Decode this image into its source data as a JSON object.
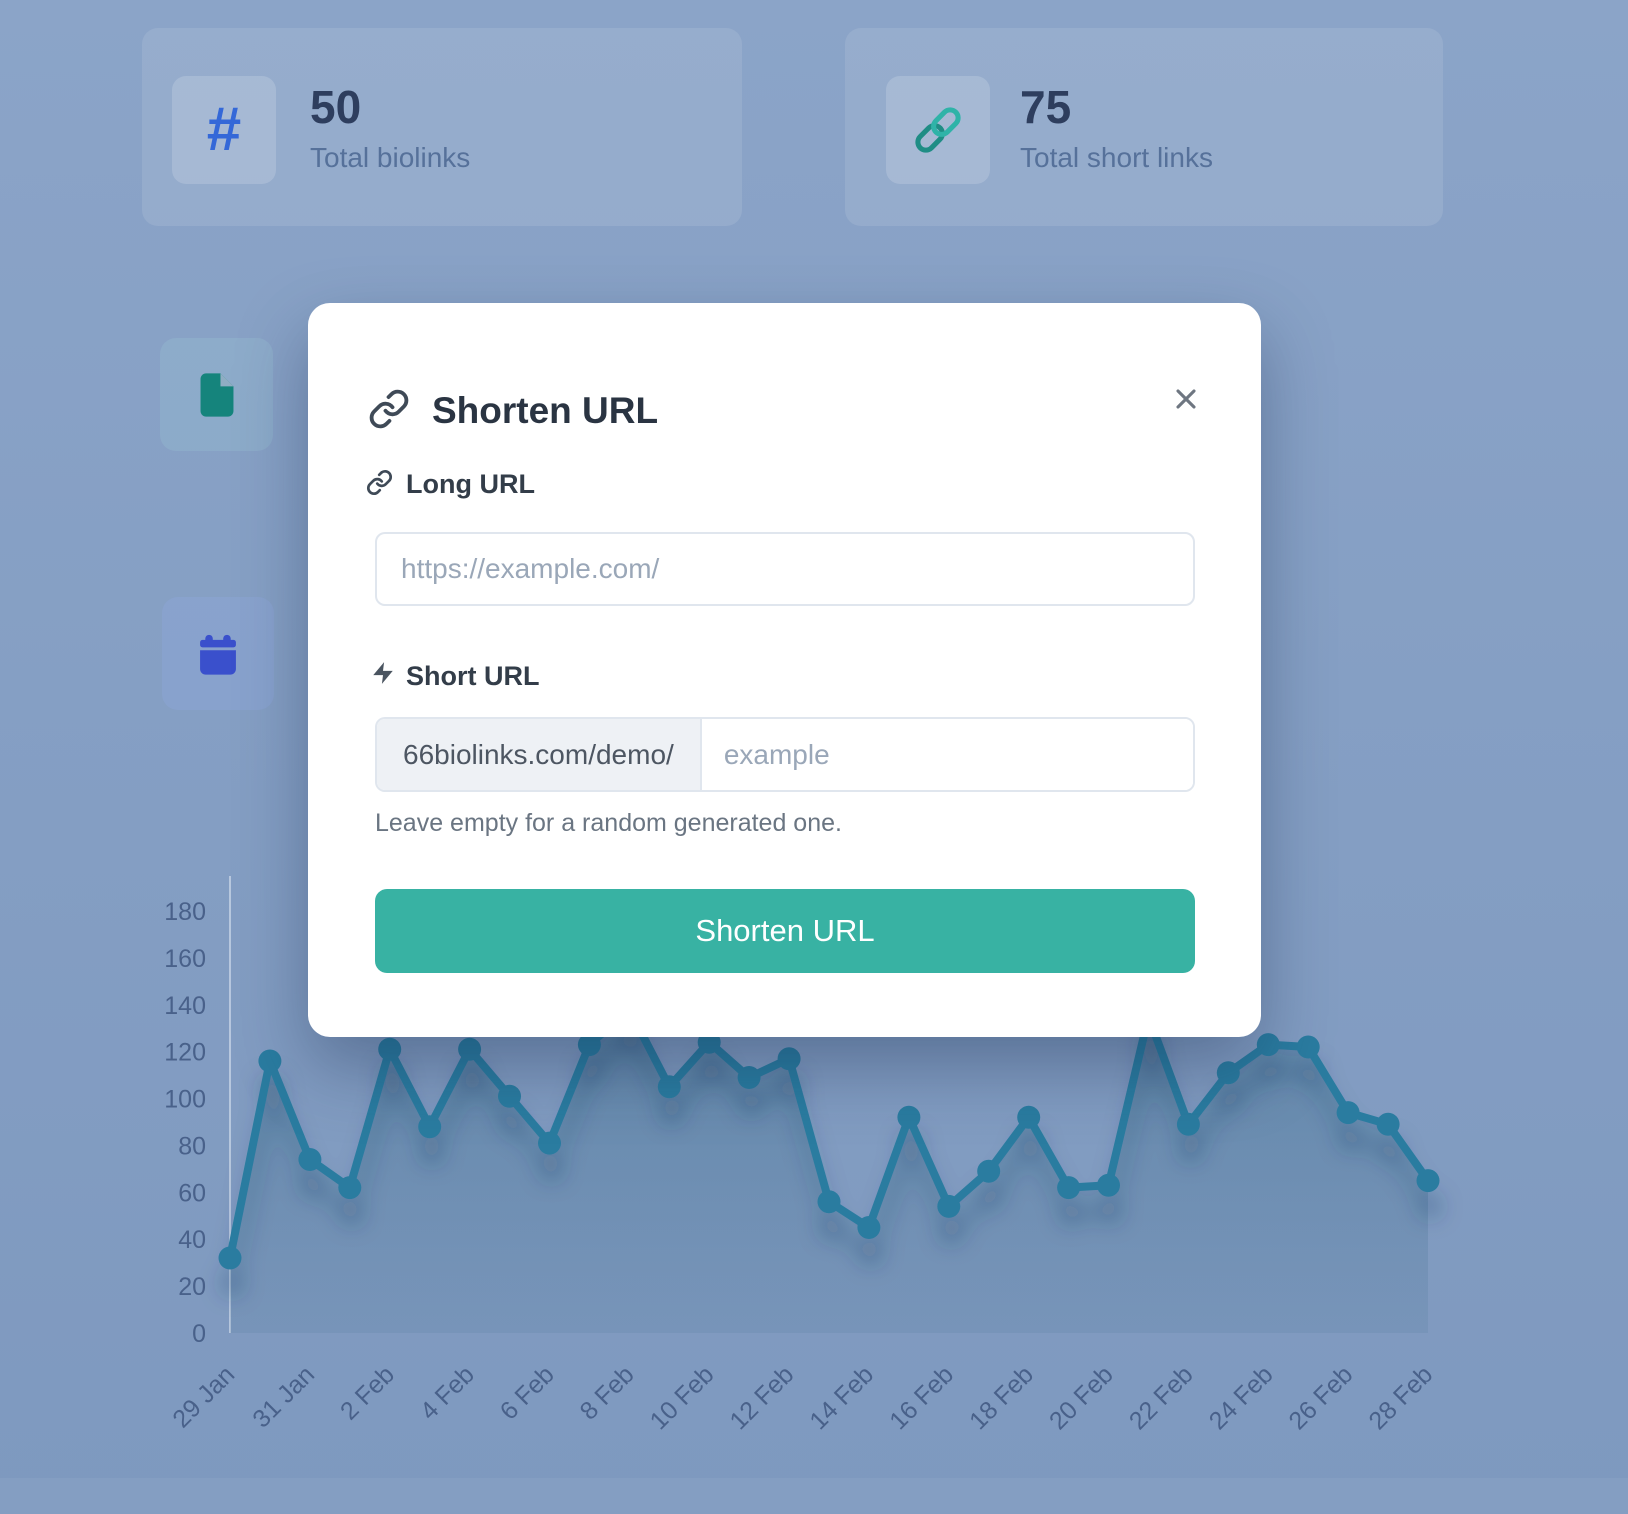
{
  "page": {
    "backdrop_color": "#85a0c4"
  },
  "stats": {
    "cards": [
      {
        "icon": "hash-icon",
        "icon_glyph": "#",
        "icon_color": "#3468d8",
        "value": "50",
        "label": "Total biolinks"
      },
      {
        "icon": "link-icon",
        "icon_color": "#2a9d95",
        "value": "75",
        "label": "Total short links"
      }
    ]
  },
  "side_tiles": [
    {
      "icon": "document-icon",
      "color": "#15847c"
    },
    {
      "icon": "calendar-icon",
      "color": "#3a50cc"
    }
  ],
  "modal": {
    "title": "Shorten URL",
    "accent_color": "#38b2a3",
    "long_url": {
      "label": "Long URL",
      "placeholder": "https://example.com/",
      "value": ""
    },
    "short_url": {
      "label": "Short URL",
      "prefix": "66biolinks.com/demo/",
      "placeholder": "example",
      "value": "",
      "helper": "Leave empty for a random generated one."
    },
    "submit_label": "Shorten URL"
  },
  "chart_data": {
    "type": "area",
    "x": [
      "29 Jan",
      "30 Jan",
      "31 Jan",
      "1 Feb",
      "2 Feb",
      "3 Feb",
      "4 Feb",
      "5 Feb",
      "6 Feb",
      "7 Feb",
      "8 Feb",
      "9 Feb",
      "10 Feb",
      "11 Feb",
      "12 Feb",
      "13 Feb",
      "14 Feb",
      "15 Feb",
      "16 Feb",
      "17 Feb",
      "18 Feb",
      "19 Feb",
      "20 Feb",
      "21 Feb",
      "22 Feb",
      "23 Feb",
      "24 Feb",
      "25 Feb",
      "26 Feb",
      "27 Feb",
      "28 Feb"
    ],
    "values": [
      32,
      116,
      74,
      62,
      121,
      88,
      121,
      101,
      81,
      123,
      138,
      105,
      124,
      109,
      117,
      56,
      45,
      92,
      54,
      69,
      92,
      62,
      63,
      135,
      89,
      111,
      123,
      122,
      94,
      89,
      65
    ],
    "x_tick_labels": [
      "29 Jan",
      "31 Jan",
      "2 Feb",
      "4 Feb",
      "6 Feb",
      "8 Feb",
      "10 Feb",
      "12 Feb",
      "14 Feb",
      "16 Feb",
      "18 Feb",
      "20 Feb",
      "22 Feb",
      "24 Feb",
      "26 Feb",
      "28 Feb"
    ],
    "y_ticks": [
      0,
      20,
      40,
      60,
      80,
      100,
      120,
      140,
      160,
      180
    ],
    "ylim": [
      0,
      180
    ],
    "grid": false,
    "legend": false,
    "line_color": "#2b7ba0",
    "fill_top": "rgba(30,92,122,0.34)",
    "fill_bottom": "rgba(60,105,135,0.12)",
    "tick_color": "#49618a",
    "axis_color": "rgba(235,242,250,0.5)"
  }
}
